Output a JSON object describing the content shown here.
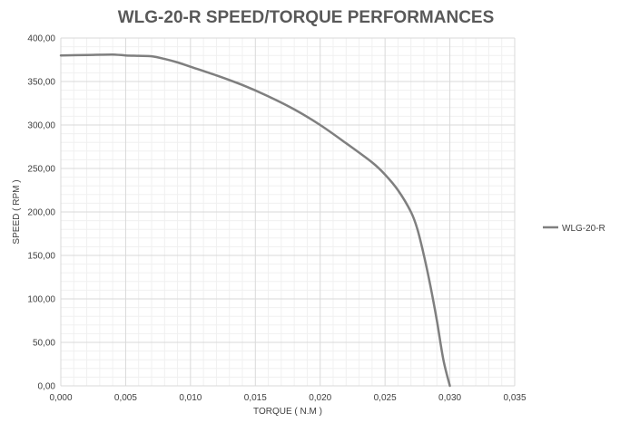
{
  "chart_data": {
    "type": "line",
    "title": "WLG-20-R SPEED/TORQUE PERFORMANCES",
    "xlabel": "TORQUE ( N.M )",
    "ylabel": "SPEED ( RPM )",
    "xlim": [
      0,
      0.035
    ],
    "ylim": [
      0,
      400
    ],
    "x_ticks": [
      "0,000",
      "0,005",
      "0,010",
      "0,015",
      "0,020",
      "0,025",
      "0,030",
      "0,035"
    ],
    "y_ticks": [
      "0,00",
      "50,00",
      "100,00",
      "150,00",
      "200,00",
      "250,00",
      "300,00",
      "350,00",
      "400,00"
    ],
    "grid": true,
    "legend_position": "right",
    "series": [
      {
        "name": "WLG-20-R",
        "color": "#7f7f7f",
        "x": [
          0.0,
          0.002,
          0.004,
          0.005,
          0.006,
          0.007,
          0.008,
          0.009,
          0.01,
          0.012,
          0.014,
          0.016,
          0.018,
          0.02,
          0.022,
          0.024,
          0.025,
          0.026,
          0.027,
          0.0275,
          0.028,
          0.0285,
          0.029,
          0.0295,
          0.03
        ],
        "y": [
          380,
          380.5,
          381,
          380,
          379.5,
          379,
          376,
          372,
          367,
          357,
          346,
          333,
          318,
          300,
          279,
          257,
          243,
          225,
          200,
          180,
          150,
          115,
          75,
          30,
          0
        ]
      }
    ]
  }
}
